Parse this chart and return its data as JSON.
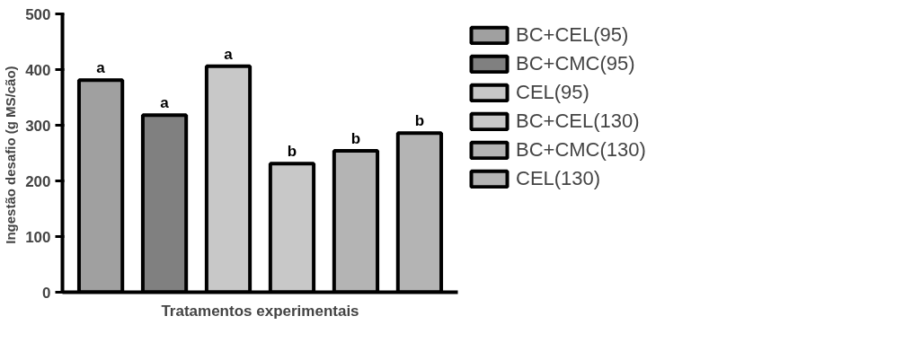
{
  "chart_data": {
    "type": "bar",
    "xlabel": "Tratamentos experimentais",
    "ylabel": "Ingestão desafio  (g MS/cão)",
    "categories": [
      null,
      null,
      null,
      null,
      null,
      null
    ],
    "series": [
      {
        "name": "BC+CEL(95)",
        "color": "#a0a0a0",
        "values": [
          381,
          null,
          null,
          null,
          null,
          null
        ],
        "value_labels": [
          "a",
          null,
          null,
          null,
          null,
          null
        ]
      },
      {
        "name": "BC+CMC(95)",
        "color": "#808080",
        "values": [
          null,
          318,
          null,
          null,
          null,
          null
        ],
        "value_labels": [
          null,
          "a",
          null,
          null,
          null,
          null
        ]
      },
      {
        "name": "CEL(95)",
        "color": "#c8c8c8",
        "values": [
          null,
          null,
          406,
          null,
          null,
          null
        ],
        "value_labels": [
          null,
          null,
          "a",
          null,
          null,
          null
        ]
      },
      {
        "name": "BC+CEL(130)",
        "color": "#c8c8c8",
        "values": [
          null,
          null,
          null,
          231,
          null,
          null
        ],
        "value_labels": [
          null,
          null,
          null,
          "b",
          null,
          null
        ]
      },
      {
        "name": "BC+CMC(130)",
        "color": "#b4b4b4",
        "values": [
          null,
          null,
          null,
          null,
          254,
          null
        ],
        "value_labels": [
          null,
          null,
          null,
          null,
          "b",
          null
        ]
      },
      {
        "name": "CEL(130)",
        "color": "#b4b4b4",
        "values": [
          null,
          null,
          null,
          null,
          null,
          286
        ],
        "value_labels": [
          null,
          null,
          null,
          null,
          null,
          "b"
        ]
      }
    ],
    "ylim": [
      0,
      500
    ],
    "yticks": [
      0,
      100,
      200,
      300,
      400,
      500
    ],
    "grid": false,
    "legend": "right"
  }
}
